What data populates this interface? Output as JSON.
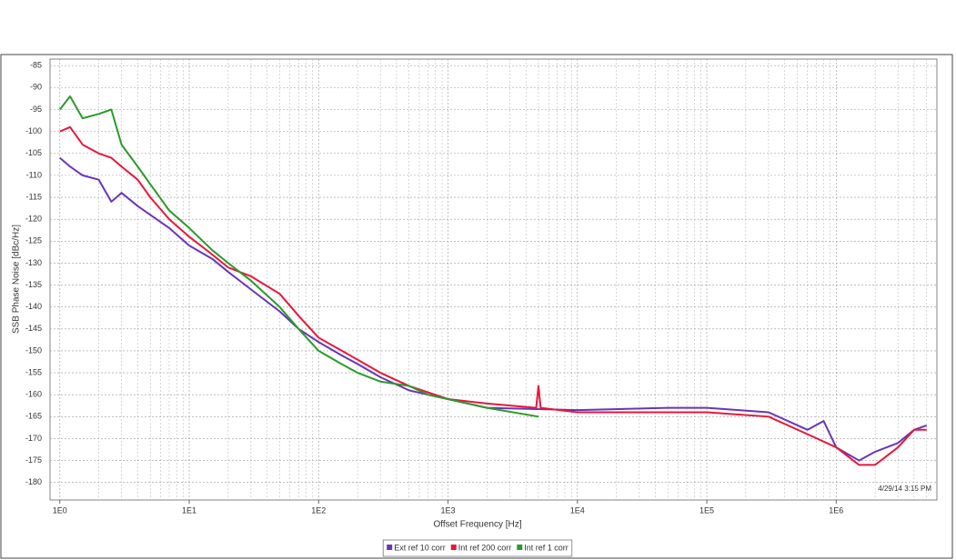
{
  "chart_data": {
    "type": "line",
    "x_label": "Offset Frequency [Hz]",
    "y_label": "SSB Phase Noise [dBc/Hz]",
    "annotation": "4/29/14 3:15 PM",
    "x_log": true,
    "grid": true,
    "legend": "bottom",
    "xlim": [
      0.84,
      6000000
    ],
    "ylim": [
      -184,
      -83.5
    ],
    "xticks": [
      {
        "value": 1,
        "label": "1E0"
      },
      {
        "value": 10,
        "label": "1E1"
      },
      {
        "value": 100,
        "label": "1E2"
      },
      {
        "value": 1000,
        "label": "1E3"
      },
      {
        "value": 10000,
        "label": "1E4"
      },
      {
        "value": 100000,
        "label": "1E5"
      },
      {
        "value": 1000000,
        "label": "1E6"
      }
    ],
    "x_minor_ticks": [
      2,
      3,
      4,
      5,
      6,
      7,
      8,
      9,
      20,
      30,
      40,
      50,
      60,
      70,
      80,
      90,
      200,
      300,
      400,
      500,
      600,
      700,
      800,
      900,
      2000,
      3000,
      4000,
      5000,
      6000,
      7000,
      8000,
      9000,
      20000,
      30000,
      40000,
      50000,
      60000,
      70000,
      80000,
      90000,
      200000,
      300000,
      400000,
      500000,
      600000,
      700000,
      800000,
      900000,
      2000000,
      3000000,
      4000000,
      5000000
    ],
    "yticks": [
      -85,
      -90,
      -95,
      -100,
      -105,
      -110,
      -115,
      -120,
      -125,
      -130,
      -135,
      -140,
      -145,
      -150,
      -155,
      -160,
      -165,
      -170,
      -175,
      -180
    ],
    "series": [
      {
        "name": "Ext ref 10 corr",
        "color": "#6a35b5",
        "x": [
          1,
          1.2,
          1.5,
          2,
          2.5,
          3,
          4,
          5,
          7,
          10,
          15,
          20,
          30,
          50,
          70,
          100,
          150,
          200,
          300,
          500,
          700,
          1000,
          2000,
          10000,
          50000,
          100000,
          300000,
          600000,
          800000,
          1000000,
          1500000,
          2000000,
          3000000,
          4000000,
          5000000
        ],
        "values": [
          -106,
          -108,
          -110,
          -111,
          -116,
          -114,
          -117,
          -119,
          -122,
          -126,
          -129,
          -132,
          -136,
          -141,
          -145,
          -148,
          -151,
          -153,
          -156,
          -159,
          -160,
          -161,
          -163,
          -163.5,
          -163,
          -163,
          -164,
          -168,
          -166,
          -172,
          -175,
          -173,
          -171,
          -168,
          -167
        ]
      },
      {
        "name": "Int ref 200 corr",
        "color": "#e8173a",
        "x": [
          1,
          1.2,
          1.5,
          2,
          2.5,
          3,
          4,
          5,
          7,
          10,
          15,
          20,
          30,
          50,
          70,
          100,
          200,
          300,
          500,
          1000,
          2000,
          4800,
          5000,
          5200,
          10000,
          100000,
          300000,
          600000,
          1000000,
          1500000,
          2000000,
          3000000,
          4000000,
          5000000
        ],
        "values": [
          -100,
          -99,
          -103,
          -105,
          -106,
          -108,
          -111,
          -115,
          -120,
          -124,
          -128,
          -131,
          -133,
          -137,
          -142,
          -147,
          -152,
          -155,
          -158,
          -161,
          -162,
          -163,
          -158,
          -163,
          -164,
          -164,
          -165,
          -169,
          -172,
          -176,
          -176,
          -172,
          -168,
          -168
        ]
      },
      {
        "name": "Int ref 1 corr",
        "color": "#2a9a2a",
        "x": [
          1,
          1.2,
          1.5,
          2,
          2.5,
          3,
          4,
          5,
          7,
          10,
          15,
          20,
          30,
          50,
          70,
          100,
          150,
          200,
          300,
          500,
          700,
          1000,
          2000,
          5000
        ],
        "values": [
          -95,
          -92,
          -97,
          -96,
          -95,
          -103,
          -108,
          -112,
          -118,
          -122,
          -127,
          -130,
          -134,
          -140,
          -145,
          -150,
          -153,
          -155,
          -157,
          -158,
          -160,
          -161,
          -163,
          -165
        ]
      }
    ]
  }
}
